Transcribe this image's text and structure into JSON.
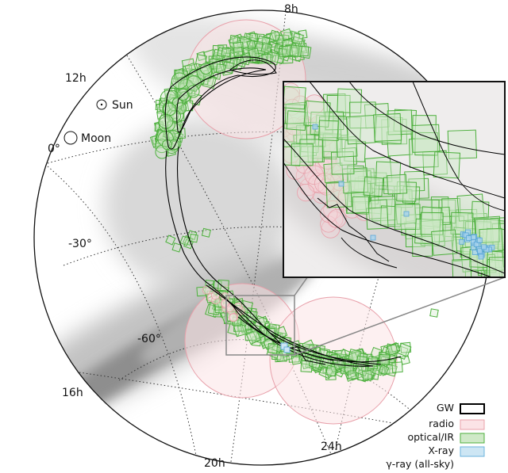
{
  "labels": {
    "ra": [
      "8h",
      "12h",
      "16h",
      "20h",
      "24h"
    ],
    "dec": [
      "0°",
      "-30°",
      "-60°"
    ],
    "sun": "Sun",
    "moon": "Moon"
  },
  "legend": {
    "gw": "GW",
    "radio": "radio",
    "optical": "optical/IR",
    "xray": "X-ray",
    "gamma": "γ-ray (all-sky)"
  },
  "colors": {
    "gw": "#000000",
    "radio": "#e8a0aa",
    "radio_fill": "#fbe3e6",
    "optical": "#4caf3c",
    "optical_fill": "#cfe9c7",
    "xray": "#6ab3dd",
    "xray_fill": "#cde6f4",
    "milky_way": "#9a9a9a"
  },
  "icons": {
    "sun": "sun-symbol-icon",
    "moon": "moon-symbol-icon"
  }
}
